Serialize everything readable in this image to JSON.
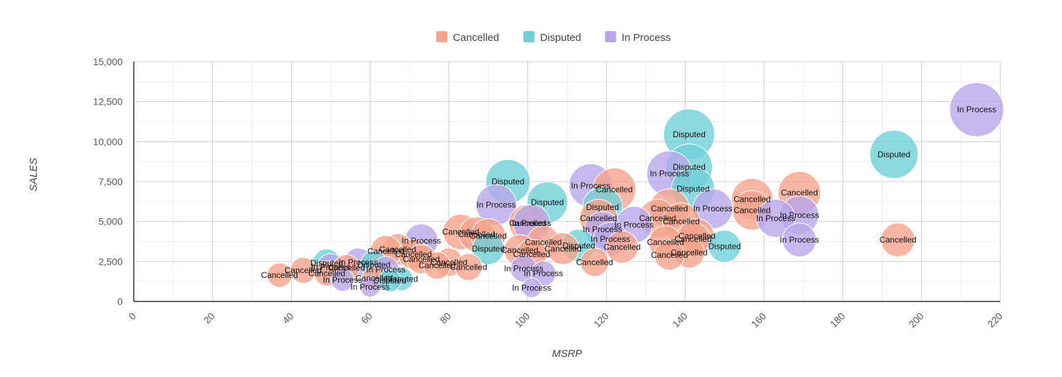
{
  "chart_data": {
    "type": "scatter",
    "subtype": "bubble",
    "xlabel": "MSRP",
    "ylabel": "SALES",
    "xlim": [
      0,
      220
    ],
    "ylim": [
      0,
      15000
    ],
    "x_ticks": [
      "0",
      "20",
      "40",
      "60",
      "80",
      "100",
      "120",
      "140",
      "160",
      "180",
      "200",
      "220"
    ],
    "y_ticks": [
      "0",
      "2,500",
      "5,000",
      "7,500",
      "10,000",
      "12,500",
      "15,000"
    ],
    "grid": true,
    "legend_position": "top-center",
    "series": [
      {
        "name": "Cancelled",
        "color": "#F4A48C",
        "points": [
          {
            "x": 37,
            "y": 1650
          },
          {
            "x": 43,
            "y": 1950
          },
          {
            "x": 49,
            "y": 1750
          },
          {
            "x": 54,
            "y": 2100
          },
          {
            "x": 61,
            "y": 1450
          },
          {
            "x": 64,
            "y": 3150
          },
          {
            "x": 67,
            "y": 3250
          },
          {
            "x": 71,
            "y": 2950
          },
          {
            "x": 73,
            "y": 2650
          },
          {
            "x": 77,
            "y": 2250
          },
          {
            "x": 80,
            "y": 2450
          },
          {
            "x": 83,
            "y": 4350
          },
          {
            "x": 85,
            "y": 2150
          },
          {
            "x": 87,
            "y": 4200
          },
          {
            "x": 90,
            "y": 4100
          },
          {
            "x": 98,
            "y": 3200
          },
          {
            "x": 100,
            "y": 4900
          },
          {
            "x": 101,
            "y": 2950
          },
          {
            "x": 104,
            "y": 3700
          },
          {
            "x": 109,
            "y": 3300
          },
          {
            "x": 117,
            "y": 2450
          },
          {
            "x": 118,
            "y": 5200
          },
          {
            "x": 122,
            "y": 7000
          },
          {
            "x": 124,
            "y": 3400
          },
          {
            "x": 133,
            "y": 5200
          },
          {
            "x": 135,
            "y": 3700
          },
          {
            "x": 136,
            "y": 5800
          },
          {
            "x": 136,
            "y": 2900
          },
          {
            "x": 139,
            "y": 5000
          },
          {
            "x": 141,
            "y": 3050
          },
          {
            "x": 142,
            "y": 3900
          },
          {
            "x": 143,
            "y": 4100
          },
          {
            "x": 157,
            "y": 6400
          },
          {
            "x": 157,
            "y": 5700
          },
          {
            "x": 169,
            "y": 6800
          },
          {
            "x": 194,
            "y": 3850
          }
        ]
      },
      {
        "name": "Disputed",
        "color": "#71CFD8",
        "points": [
          {
            "x": 49,
            "y": 2400
          },
          {
            "x": 61,
            "y": 2300
          },
          {
            "x": 65,
            "y": 1300
          },
          {
            "x": 68,
            "y": 1400
          },
          {
            "x": 90,
            "y": 3300
          },
          {
            "x": 95,
            "y": 7500
          },
          {
            "x": 105,
            "y": 6200
          },
          {
            "x": 113,
            "y": 3500
          },
          {
            "x": 119,
            "y": 5900
          },
          {
            "x": 141,
            "y": 10450
          },
          {
            "x": 141,
            "y": 8400
          },
          {
            "x": 142,
            "y": 7050
          },
          {
            "x": 150,
            "y": 3450
          },
          {
            "x": 193,
            "y": 9200
          }
        ]
      },
      {
        "name": "In Process",
        "color": "#B8A7E8",
        "points": [
          {
            "x": 50,
            "y": 2150
          },
          {
            "x": 53,
            "y": 1350
          },
          {
            "x": 57,
            "y": 2450
          },
          {
            "x": 60,
            "y": 900
          },
          {
            "x": 64,
            "y": 2000
          },
          {
            "x": 73,
            "y": 3800
          },
          {
            "x": 92,
            "y": 6050
          },
          {
            "x": 99,
            "y": 2050
          },
          {
            "x": 101,
            "y": 4900
          },
          {
            "x": 101,
            "y": 850
          },
          {
            "x": 104,
            "y": 1750
          },
          {
            "x": 116,
            "y": 7250
          },
          {
            "x": 119,
            "y": 4500
          },
          {
            "x": 121,
            "y": 3900
          },
          {
            "x": 127,
            "y": 4800
          },
          {
            "x": 136,
            "y": 8000
          },
          {
            "x": 147,
            "y": 5800
          },
          {
            "x": 163,
            "y": 5200
          },
          {
            "x": 169,
            "y": 5400
          },
          {
            "x": 169,
            "y": 3850
          },
          {
            "x": 214,
            "y": 12000
          }
        ]
      }
    ]
  }
}
